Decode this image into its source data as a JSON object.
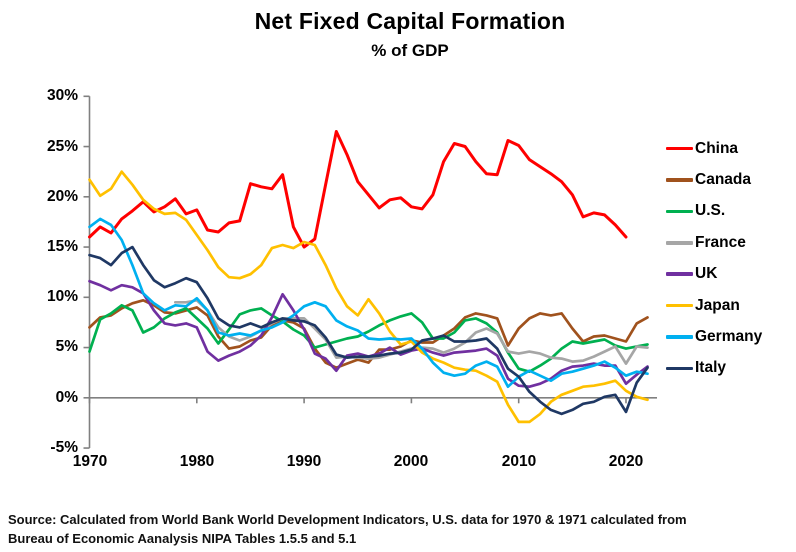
{
  "title": "Net Fixed Capital Formation",
  "subtitle": "% of GDP",
  "source": {
    "line1": "Source:  Calculated from World Bank World Development Indicators, U.S. data for 1970 & 1971 calculated from",
    "line2": "Bureau of Economic Aanalysis NIPA Tables 1.5.5 and 5.1"
  },
  "chart_data": {
    "type": "line",
    "title": "Net Fixed Capital Formation",
    "subtitle": "% of GDP",
    "xlabel": "",
    "ylabel": "% of GDP",
    "ylim": [
      -5,
      30
    ],
    "xlim": [
      1970,
      2022
    ],
    "grid": false,
    "legend_position": "right",
    "axis_color": "#808080",
    "y_ticks": [
      "30%",
      "25%",
      "20%",
      "15%",
      "10%",
      "5%",
      "0%",
      "-5%"
    ],
    "x_ticks": [
      "1970",
      "1980",
      "1990",
      "2000",
      "2010",
      "2020"
    ],
    "series": [
      {
        "name": "China",
        "color": "#FF0000",
        "start_year": 1970,
        "values": [
          16.0,
          17.0,
          16.4,
          17.8,
          18.6,
          19.5,
          18.5,
          19.0,
          19.8,
          18.3,
          18.7,
          16.7,
          16.5,
          17.4,
          17.6,
          21.3,
          21.0,
          20.8,
          22.2,
          17.0,
          15.0,
          15.8,
          21.2,
          26.5,
          24.2,
          21.5,
          20.2,
          18.9,
          19.7,
          19.9,
          19.0,
          18.8,
          20.2,
          23.5,
          25.3,
          25.0,
          23.5,
          22.3,
          22.2,
          25.6,
          25.1,
          23.7,
          23.0,
          22.3,
          21.5,
          20.2,
          18.0,
          18.4,
          18.2,
          17.2,
          16.0
        ]
      },
      {
        "name": "Canada",
        "color": "#A0521D",
        "start_year": 1970,
        "values": [
          7.0,
          8.0,
          8.2,
          8.9,
          9.4,
          9.7,
          9.2,
          8.5,
          8.4,
          8.7,
          9.0,
          8.2,
          6.1,
          4.9,
          5.1,
          5.7,
          6.0,
          7.2,
          7.7,
          7.5,
          6.9,
          4.9,
          3.5,
          3.0,
          3.4,
          3.8,
          3.5,
          4.8,
          4.8,
          5.1,
          5.7,
          5.5,
          5.5,
          6.2,
          6.9,
          8.0,
          8.4,
          8.2,
          7.9,
          5.2,
          6.9,
          7.9,
          8.4,
          8.2,
          8.4,
          6.9,
          5.6,
          6.1,
          6.2,
          5.9,
          5.6,
          7.4,
          8.0
        ]
      },
      {
        "name": "U.S.",
        "color": "#00B050",
        "start_year": 1970,
        "values": [
          4.6,
          7.8,
          8.4,
          9.2,
          8.7,
          6.5,
          7.0,
          7.9,
          8.5,
          8.9,
          7.9,
          6.9,
          5.4,
          6.8,
          8.3,
          8.7,
          8.9,
          8.2,
          7.6,
          6.8,
          6.2,
          5.0,
          5.3,
          5.6,
          5.9,
          6.1,
          6.6,
          7.2,
          7.7,
          8.1,
          8.4,
          7.5,
          5.9,
          5.9,
          6.5,
          7.7,
          7.9,
          7.4,
          6.5,
          4.5,
          2.9,
          2.6,
          3.2,
          3.9,
          4.9,
          5.6,
          5.4,
          5.6,
          5.8,
          5.2,
          4.9,
          5.1,
          5.3
        ]
      },
      {
        "name": "France",
        "color": "#A6A6A6",
        "start_year": 1978,
        "values": [
          9.5,
          9.5,
          9.7,
          8.7,
          7.0,
          6.1,
          5.7,
          6.1,
          6.7,
          7.4,
          7.9,
          7.9,
          7.9,
          6.9,
          5.8,
          4.0,
          4.1,
          4.0,
          3.9,
          4.0,
          4.3,
          4.6,
          4.9,
          5.0,
          4.9,
          4.5,
          4.9,
          5.5,
          6.5,
          6.9,
          6.4,
          4.6,
          4.4,
          4.6,
          4.4,
          4.0,
          3.9,
          3.6,
          3.7,
          4.1,
          4.6,
          5.1,
          3.4,
          5.1,
          5.0
        ]
      },
      {
        "name": "UK",
        "color": "#7030A0",
        "start_year": 1970,
        "values": [
          11.6,
          11.2,
          10.7,
          11.2,
          11.0,
          10.4,
          8.7,
          7.4,
          7.2,
          7.4,
          7.0,
          4.6,
          3.7,
          4.2,
          4.6,
          5.2,
          6.2,
          8.0,
          10.3,
          8.7,
          6.8,
          4.4,
          3.9,
          2.7,
          4.2,
          4.4,
          4.1,
          4.4,
          5.0,
          4.3,
          4.7,
          4.9,
          4.5,
          4.2,
          4.5,
          4.6,
          4.7,
          4.9,
          4.2,
          1.9,
          1.2,
          1.1,
          1.4,
          1.9,
          2.7,
          3.1,
          3.2,
          3.4,
          3.2,
          3.2,
          1.4,
          2.3,
          3.1
        ]
      },
      {
        "name": "Japan",
        "color": "#FFC000",
        "start_year": 1970,
        "values": [
          21.7,
          20.1,
          20.8,
          22.5,
          21.2,
          19.7,
          18.8,
          18.3,
          18.4,
          17.7,
          16.2,
          14.7,
          13.0,
          12.0,
          11.9,
          12.3,
          13.2,
          14.9,
          15.2,
          14.9,
          15.5,
          15.2,
          13.2,
          10.9,
          9.1,
          8.2,
          9.8,
          8.4,
          6.6,
          5.3,
          5.6,
          4.5,
          3.9,
          3.5,
          3.0,
          2.8,
          2.7,
          2.2,
          1.6,
          -0.7,
          -2.4,
          -2.4,
          -1.6,
          -0.4,
          0.3,
          0.7,
          1.1,
          1.2,
          1.4,
          1.7,
          0.7,
          0.1,
          -0.2
        ]
      },
      {
        "name": "Germany",
        "color": "#00B0F0",
        "start_year": 1970,
        "values": [
          17.0,
          17.8,
          17.2,
          15.7,
          13.2,
          10.4,
          9.4,
          8.7,
          9.2,
          9.1,
          9.9,
          8.7,
          6.5,
          6.2,
          6.4,
          6.2,
          6.7,
          7.0,
          7.5,
          8.2,
          9.1,
          9.5,
          9.1,
          7.7,
          7.1,
          6.7,
          5.9,
          5.8,
          5.9,
          5.8,
          5.9,
          4.9,
          3.5,
          2.5,
          2.2,
          2.4,
          3.2,
          3.6,
          3.1,
          1.1,
          2.1,
          2.7,
          2.2,
          1.7,
          2.4,
          2.6,
          2.9,
          3.2,
          3.6,
          3.0,
          2.2,
          2.6,
          2.4
        ]
      },
      {
        "name": "Italy",
        "color": "#1F3864",
        "start_year": 1970,
        "values": [
          14.2,
          13.9,
          13.2,
          14.4,
          15.0,
          13.2,
          11.7,
          11.0,
          11.4,
          11.9,
          11.5,
          9.9,
          7.9,
          7.2,
          7.0,
          7.4,
          7.0,
          7.5,
          7.9,
          7.7,
          7.6,
          7.2,
          6.0,
          4.3,
          4.0,
          4.1,
          4.1,
          4.2,
          4.4,
          4.5,
          4.8,
          5.7,
          5.9,
          6.2,
          5.6,
          5.6,
          5.7,
          5.9,
          4.9,
          2.9,
          2.1,
          0.6,
          -0.4,
          -1.2,
          -1.6,
          -1.2,
          -0.6,
          -0.4,
          0.1,
          0.3,
          -1.4,
          1.5,
          3.0
        ]
      }
    ]
  }
}
